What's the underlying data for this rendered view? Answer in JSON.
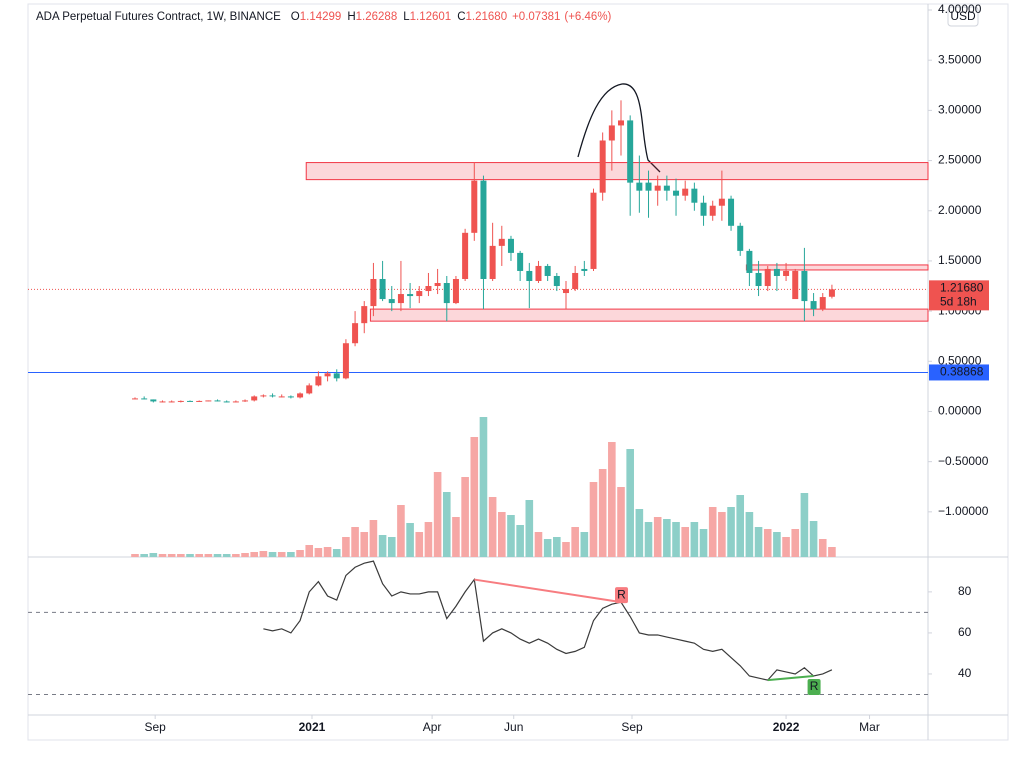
{
  "chart_data": {
    "type": "candlestick",
    "title": "ADA Perpetual Futures Contract, 1W, BINANCE",
    "ohlc_legend": [
      {
        "label": "O",
        "value": 1.14299,
        "value_label": "1.14299"
      },
      {
        "label": "H",
        "value": 1.26288,
        "value_label": "1.26288"
      },
      {
        "label": "L",
        "value": 1.12601,
        "value_label": "1.12601"
      },
      {
        "label": "C",
        "value": 1.2168,
        "value_label": "1.21680"
      }
    ],
    "change": {
      "value": 0.07381,
      "label": "+0.07381"
    },
    "change_pct": {
      "value": 6.46,
      "label": "(+6.46%)"
    },
    "currency_button": "USD",
    "up_color": "#ef5350",
    "down_color": "#26a69a",
    "volume_up_color": "#f6a7a5",
    "volume_down_color": "#8dcfc8",
    "open": [
      0.13,
      0.13,
      0.12,
      0.1,
      0.1,
      0.1,
      0.105,
      0.1,
      0.105,
      0.11,
      0.1,
      0.095,
      0.1,
      0.11,
      0.15,
      0.16,
      0.15,
      0.15,
      0.14,
      0.18,
      0.26,
      0.35,
      0.38,
      0.33,
      0.68,
      0.88,
      1.05,
      1.32,
      1.12,
      1.08,
      1.17,
      1.15,
      1.2,
      1.25,
      1.28,
      1.08,
      1.32,
      1.78,
      2.3,
      1.32,
      1.65,
      1.72,
      1.58,
      1.4,
      1.3,
      1.45,
      1.35,
      1.18,
      1.22,
      1.42,
      1.42,
      2.18,
      2.7,
      2.85,
      2.9,
      2.28,
      2.28,
      2.2,
      2.25,
      2.2,
      2.15,
      2.22,
      2.08,
      1.95,
      2.05,
      2.12,
      1.85,
      1.6,
      1.38,
      1.25,
      1.42,
      1.35,
      1.12,
      1.4,
      1.1,
      1.02,
      1.14299
    ],
    "high": [
      0.14,
      0.15,
      0.12,
      0.11,
      0.11,
      0.11,
      0.11,
      0.11,
      0.11,
      0.12,
      0.11,
      0.11,
      0.12,
      0.16,
      0.17,
      0.18,
      0.17,
      0.16,
      0.19,
      0.28,
      0.4,
      0.4,
      0.42,
      0.72,
      1.0,
      1.1,
      1.48,
      1.5,
      1.25,
      1.5,
      1.28,
      1.25,
      1.38,
      1.42,
      1.35,
      1.35,
      1.82,
      2.48,
      2.35,
      1.88,
      1.85,
      1.75,
      1.6,
      1.48,
      1.5,
      1.47,
      1.38,
      1.3,
      1.45,
      1.5,
      2.22,
      2.78,
      3.0,
      3.1,
      2.95,
      2.55,
      2.4,
      2.35,
      2.35,
      2.32,
      2.3,
      2.28,
      2.15,
      2.1,
      2.4,
      2.15,
      1.88,
      1.62,
      1.5,
      1.45,
      1.48,
      1.48,
      1.42,
      1.63,
      1.18,
      1.18,
      1.26288
    ],
    "low": [
      0.12,
      0.12,
      0.09,
      0.09,
      0.09,
      0.09,
      0.1,
      0.095,
      0.1,
      0.1,
      0.09,
      0.09,
      0.095,
      0.1,
      0.14,
      0.14,
      0.14,
      0.13,
      0.13,
      0.17,
      0.25,
      0.3,
      0.3,
      0.32,
      0.65,
      0.78,
      0.95,
      1.1,
      1.0,
      1.0,
      1.03,
      1.08,
      1.15,
      1.17,
      0.9,
      1.07,
      1.3,
      1.7,
      1.02,
      1.3,
      1.45,
      1.5,
      1.3,
      1.03,
      1.28,
      1.3,
      1.2,
      1.02,
      1.2,
      1.35,
      1.4,
      2.1,
      2.4,
      2.55,
      1.95,
      1.98,
      1.93,
      2.05,
      2.1,
      1.95,
      2.1,
      2.0,
      1.85,
      1.9,
      1.9,
      1.8,
      1.55,
      1.25,
      1.15,
      1.2,
      1.2,
      1.3,
      1.15,
      0.9,
      0.95,
      1.0,
      1.12601
    ],
    "close": [
      0.13,
      0.12,
      0.1,
      0.1,
      0.1,
      0.105,
      0.1,
      0.105,
      0.11,
      0.1,
      0.095,
      0.1,
      0.11,
      0.15,
      0.16,
      0.15,
      0.15,
      0.14,
      0.18,
      0.26,
      0.35,
      0.38,
      0.33,
      0.68,
      0.88,
      1.05,
      1.32,
      1.12,
      1.08,
      1.17,
      1.15,
      1.2,
      1.25,
      1.28,
      1.08,
      1.32,
      1.78,
      2.3,
      1.32,
      1.65,
      1.72,
      1.58,
      1.4,
      1.3,
      1.45,
      1.35,
      1.25,
      1.22,
      1.38,
      1.4,
      2.18,
      2.7,
      2.85,
      2.9,
      2.28,
      2.2,
      2.2,
      2.25,
      2.2,
      2.15,
      2.22,
      2.08,
      1.95,
      2.05,
      2.12,
      1.85,
      1.6,
      1.38,
      1.25,
      1.42,
      1.35,
      1.4,
      1.4,
      1.1,
      1.02,
      1.14,
      1.2168
    ],
    "volume": [
      3,
      3,
      4,
      3,
      3,
      3,
      3,
      3,
      3,
      3,
      3,
      3,
      4,
      5,
      6,
      5,
      5,
      5,
      7,
      12,
      9,
      10,
      8,
      20,
      30,
      25,
      37,
      22,
      20,
      52,
      34,
      25,
      35,
      85,
      65,
      40,
      80,
      120,
      140,
      60,
      45,
      42,
      32,
      57,
      25,
      18,
      20,
      15,
      30,
      25,
      75,
      88,
      115,
      70,
      108,
      48,
      35,
      40,
      38,
      35,
      30,
      35,
      28,
      50,
      45,
      50,
      62,
      45,
      30,
      28,
      25,
      20,
      28,
      64,
      36,
      18,
      10
    ],
    "rsi": [
      null,
      null,
      null,
      null,
      null,
      null,
      null,
      null,
      null,
      null,
      null,
      null,
      null,
      null,
      62,
      61,
      62,
      60,
      66,
      80,
      85,
      78,
      76,
      88,
      92,
      94,
      95,
      84,
      78,
      80,
      79,
      79,
      80,
      80,
      67,
      73,
      80,
      86,
      56,
      60,
      62,
      60,
      57,
      55,
      57,
      55,
      52,
      50,
      51,
      53,
      66,
      72,
      74,
      75,
      68,
      60,
      59,
      59,
      58,
      57,
      56,
      55,
      52,
      51,
      52,
      48,
      44,
      39,
      38,
      37,
      42,
      41,
      40,
      43,
      39,
      40,
      42
    ],
    "ylim": [
      -1.45,
      4.05
    ],
    "yticks": [
      {
        "value": 4.0,
        "label": "4.00000"
      },
      {
        "value": 3.5,
        "label": "3.50000"
      },
      {
        "value": 3.0,
        "label": "3.00000"
      },
      {
        "value": 2.5,
        "label": "2.50000"
      },
      {
        "value": 2.0,
        "label": "2.00000"
      },
      {
        "value": 1.5,
        "label": "1.50000"
      },
      {
        "value": 1.0,
        "label": "1.00000"
      },
      {
        "value": 0.5,
        "label": "0.50000"
      },
      {
        "value": 0.0,
        "label": "0.00000"
      },
      {
        "value": -0.5,
        "label": "−0.50000"
      },
      {
        "value": -1.0,
        "label": "−1.00000"
      }
    ],
    "xticks": [
      {
        "value": 2.2,
        "label": "Sep"
      },
      {
        "value": 19.3,
        "label": "2021"
      },
      {
        "value": 32.4,
        "label": "Apr"
      },
      {
        "value": 41.3,
        "label": "Jun"
      },
      {
        "value": 54.2,
        "label": "Sep"
      },
      {
        "value": 71.0,
        "label": "2022"
      },
      {
        "value": 80.1,
        "label": "Mar"
      }
    ],
    "rsi_lim": [
      20,
      97
    ],
    "rsi_ticks": [
      80,
      60,
      40
    ],
    "rsi_levels": [
      70,
      30
    ],
    "zones": [
      {
        "low": 2.31,
        "high": 2.48,
        "start": 19
      },
      {
        "low": 1.41,
        "high": 1.46,
        "start": 67
      },
      {
        "low": 0.9,
        "high": 1.02,
        "start": 26
      }
    ],
    "zone_color": "#f23645",
    "horizontal_line": {
      "value": 0.38868,
      "label": "0.38868",
      "color": "#2962ff"
    },
    "last_price": {
      "value": 1.2168,
      "label": "1.21680",
      "countdown": "5d 18h"
    },
    "divergences": [
      {
        "from": 37,
        "to": 53,
        "label": "R",
        "color": "#f77c80"
      },
      {
        "from": 69,
        "to": 74,
        "label": "R",
        "color": "#4caf50"
      }
    ]
  }
}
